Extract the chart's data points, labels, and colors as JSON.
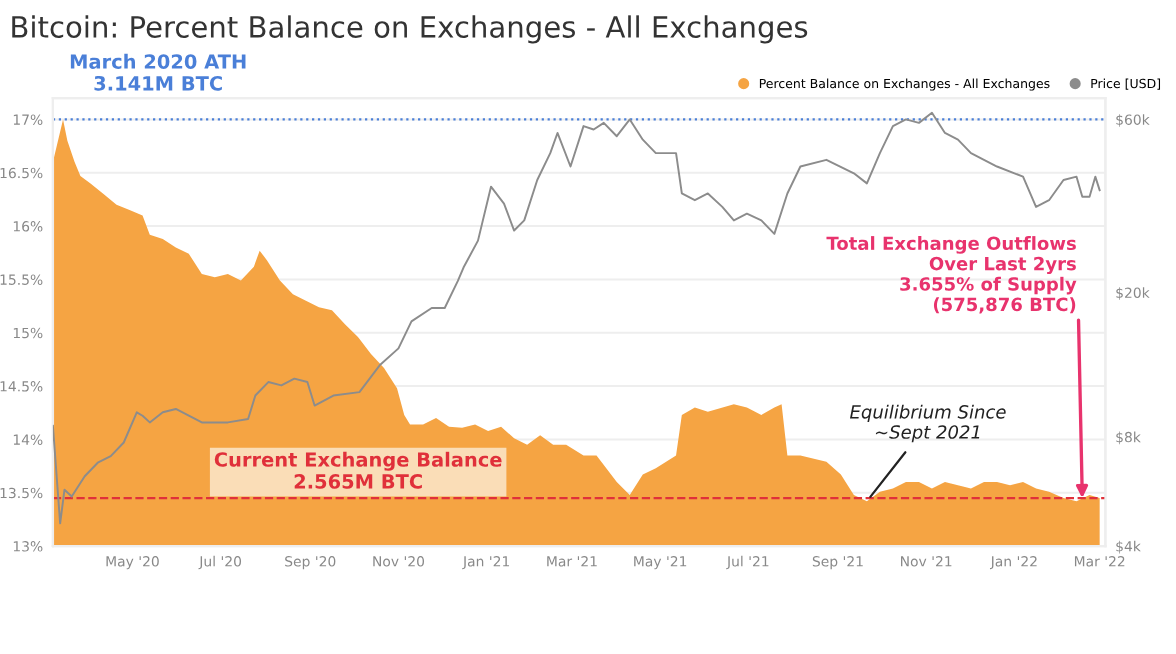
{
  "chart_data": {
    "type": "area",
    "title": "Bitcoin: Percent Balance on Exchanges - All Exchanges",
    "xlim": [
      "2020-03-07",
      "2022-03-05"
    ],
    "xticks": [
      {
        "value": "2020-05-01",
        "label": "May '20"
      },
      {
        "value": "2020-07-01",
        "label": "Jul '20"
      },
      {
        "value": "2020-09-01",
        "label": "Sep '20"
      },
      {
        "value": "2020-11-01",
        "label": "Nov '20"
      },
      {
        "value": "2021-01-01",
        "label": "Jan '21"
      },
      {
        "value": "2021-03-01",
        "label": "Mar '21"
      },
      {
        "value": "2021-05-01",
        "label": "May '21"
      },
      {
        "value": "2021-07-01",
        "label": "Jul '21"
      },
      {
        "value": "2021-09-01",
        "label": "Sep '21"
      },
      {
        "value": "2021-11-01",
        "label": "Nov '21"
      },
      {
        "value": "2022-01-01",
        "label": "Jan '22"
      },
      {
        "value": "2022-03-01",
        "label": "Mar '22"
      }
    ],
    "ylim": [
      13,
      17.2
    ],
    "yticks": [
      {
        "value": 13,
        "label": "13%"
      },
      {
        "value": 13.5,
        "label": "13.5%"
      },
      {
        "value": 14,
        "label": "14%"
      },
      {
        "value": 14.5,
        "label": "14.5%"
      },
      {
        "value": 15,
        "label": "15%"
      },
      {
        "value": 15.5,
        "label": "15.5%"
      },
      {
        "value": 16,
        "label": "16%"
      },
      {
        "value": 16.5,
        "label": "16.5%"
      },
      {
        "value": 17,
        "label": "17%"
      }
    ],
    "log": "y2",
    "y2lim": [
      4000,
      68700
    ],
    "y2ticks": [
      {
        "value": 4000,
        "label": "$4k"
      },
      {
        "value": 8000,
        "label": "$8k"
      },
      {
        "value": 20000,
        "label": "$20k"
      },
      {
        "value": 60000,
        "label": "$60k"
      }
    ],
    "grid": "y",
    "legend": "top right",
    "series": [
      {
        "name": "Percent Balance on Exchanges - All Exchanges",
        "color": "#f5a443",
        "x": [
          "2020-03-07",
          "2020-03-14",
          "2020-03-17",
          "2020-03-22",
          "2020-03-26",
          "2020-04-02",
          "2020-04-11",
          "2020-04-20",
          "2020-04-29",
          "2020-05-08",
          "2020-05-13",
          "2020-05-22",
          "2020-05-31",
          "2020-06-09",
          "2020-06-18",
          "2020-06-27",
          "2020-07-06",
          "2020-07-15",
          "2020-07-24",
          "2020-07-28",
          "2020-08-02",
          "2020-08-11",
          "2020-08-20",
          "2020-08-29",
          "2020-09-07",
          "2020-09-16",
          "2020-09-25",
          "2020-10-04",
          "2020-10-13",
          "2020-10-22",
          "2020-10-31",
          "2020-11-05",
          "2020-11-09",
          "2020-11-18",
          "2020-11-27",
          "2020-12-06",
          "2020-12-15",
          "2020-12-24",
          "2021-01-02",
          "2021-01-11",
          "2021-01-20",
          "2021-01-29",
          "2021-02-07",
          "2021-02-16",
          "2021-02-25",
          "2021-03-09",
          "2021-03-18",
          "2021-04-01",
          "2021-04-10",
          "2021-04-19",
          "2021-04-28",
          "2021-05-12",
          "2021-05-16",
          "2021-05-25",
          "2021-06-03",
          "2021-06-21",
          "2021-06-30",
          "2021-07-10",
          "2021-07-19",
          "2021-07-24",
          "2021-07-28",
          "2021-08-06",
          "2021-08-24",
          "2021-09-03",
          "2021-09-12",
          "2021-09-21",
          "2021-09-30",
          "2021-10-09",
          "2021-10-18",
          "2021-10-27",
          "2021-11-05",
          "2021-11-14",
          "2021-11-23",
          "2021-12-02",
          "2021-12-11",
          "2021-12-20",
          "2021-12-29",
          "2022-01-07",
          "2022-01-16",
          "2022-01-25",
          "2022-02-04",
          "2022-02-13",
          "2022-02-22",
          "2022-03-01"
        ],
        "values": [
          16.6,
          17.0,
          16.8,
          16.6,
          16.47,
          16.4,
          16.3,
          16.2,
          16.15,
          16.1,
          15.92,
          15.88,
          15.8,
          15.74,
          15.55,
          15.52,
          15.55,
          15.49,
          15.62,
          15.77,
          15.68,
          15.49,
          15.36,
          15.3,
          15.24,
          15.21,
          15.08,
          14.96,
          14.8,
          14.67,
          14.48,
          14.23,
          14.14,
          14.14,
          14.2,
          14.12,
          14.11,
          14.14,
          14.08,
          14.12,
          14.01,
          13.95,
          14.04,
          13.95,
          13.95,
          13.85,
          13.85,
          13.6,
          13.48,
          13.67,
          13.73,
          13.85,
          14.23,
          14.3,
          14.26,
          14.33,
          14.3,
          14.23,
          14.3,
          14.33,
          13.85,
          13.85,
          13.79,
          13.67,
          13.48,
          13.42,
          13.51,
          13.54,
          13.6,
          13.6,
          13.54,
          13.6,
          13.57,
          13.54,
          13.6,
          13.6,
          13.57,
          13.6,
          13.54,
          13.51,
          13.45,
          13.42,
          13.48,
          13.45
        ]
      },
      {
        "name": "Price [USD]",
        "type": "line",
        "axis": "y2",
        "color": "#8c8c8c",
        "x": [
          "2020-03-07",
          "2020-03-12",
          "2020-03-15",
          "2020-03-20",
          "2020-03-29",
          "2020-04-07",
          "2020-04-16",
          "2020-04-25",
          "2020-05-04",
          "2020-05-08",
          "2020-05-13",
          "2020-05-22",
          "2020-05-31",
          "2020-06-09",
          "2020-06-18",
          "2020-07-06",
          "2020-07-20",
          "2020-07-25",
          "2020-08-03",
          "2020-08-12",
          "2020-08-21",
          "2020-08-30",
          "2020-09-04",
          "2020-09-17",
          "2020-10-05",
          "2020-10-19",
          "2020-11-01",
          "2020-11-10",
          "2020-11-24",
          "2020-12-03",
          "2020-12-12",
          "2020-12-16",
          "2020-12-26",
          "2021-01-04",
          "2021-01-13",
          "2021-01-20",
          "2021-01-27",
          "2021-02-05",
          "2021-02-14",
          "2021-02-19",
          "2021-02-28",
          "2021-03-09",
          "2021-03-16",
          "2021-03-23",
          "2021-04-01",
          "2021-04-10",
          "2021-04-19",
          "2021-04-28",
          "2021-05-12",
          "2021-05-16",
          "2021-05-25",
          "2021-06-03",
          "2021-06-13",
          "2021-06-21",
          "2021-06-30",
          "2021-07-10",
          "2021-07-19",
          "2021-07-28",
          "2021-08-06",
          "2021-08-24",
          "2021-09-12",
          "2021-09-21",
          "2021-09-30",
          "2021-10-09",
          "2021-10-18",
          "2021-10-27",
          "2021-11-05",
          "2021-11-14",
          "2021-11-23",
          "2021-12-02",
          "2021-12-20",
          "2022-01-07",
          "2022-01-16",
          "2022-01-25",
          "2022-02-04",
          "2022-02-13",
          "2022-02-17",
          "2022-02-22",
          "2022-02-26",
          "2022-03-01"
        ],
        "values": [
          8580,
          4620,
          5720,
          5480,
          6230,
          6790,
          7080,
          7720,
          9350,
          9150,
          8770,
          9350,
          9550,
          9150,
          8770,
          8770,
          8960,
          10400,
          11330,
          11090,
          11580,
          11330,
          9760,
          10400,
          10630,
          12600,
          14030,
          16650,
          18130,
          18130,
          21510,
          23440,
          27800,
          39150,
          35160,
          29640,
          31610,
          40840,
          48440,
          55060,
          44500,
          57520,
          56280,
          58710,
          53940,
          60000,
          52770,
          48440,
          48440,
          37500,
          35930,
          37500,
          34440,
          31610,
          32980,
          31610,
          29020,
          37500,
          44500,
          46430,
          42620,
          39980,
          48440,
          57520,
          60000,
          58710,
          62590,
          55060,
          52770,
          48440,
          44500,
          41730,
          34440,
          35930,
          40840,
          41730,
          36720,
          36720,
          41730,
          38300
        ]
      }
    ],
    "ref_lines": [
      {
        "axis": "y",
        "value": 17.0,
        "label": "March 2020 ATH\n3.141M BTC",
        "color": "#4a7fd8",
        "line_style": "dotted"
      },
      {
        "axis": "y",
        "value": 13.45,
        "label": "Current Exchange Balance\n2.565M BTC",
        "color": "#e0303a",
        "line_style": "dashed"
      }
    ],
    "annotations": [
      {
        "text": "Total Exchange Outflows\nOver Last 2yrs\n3.655% of Supply\n(575,876 BTC)",
        "x": "2022-02-17",
        "y": 13.45
      },
      {
        "text": "Equilibrium Since\n~Sept 2021",
        "x": "2021-09-21",
        "y": 13.42
      }
    ]
  }
}
